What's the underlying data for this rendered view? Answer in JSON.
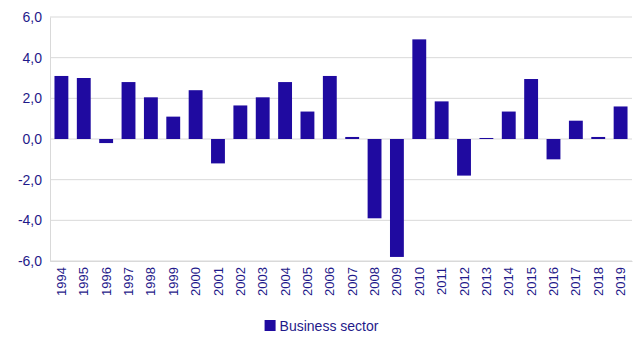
{
  "chart_data": {
    "type": "bar",
    "categories": [
      "1994",
      "1995",
      "1996",
      "1997",
      "1998",
      "1999",
      "2000",
      "2001",
      "2002",
      "2003",
      "2004",
      "2005",
      "2006",
      "2007",
      "2008",
      "2009",
      "2010",
      "2011",
      "2012",
      "2013",
      "2014",
      "2015",
      "2016",
      "2017",
      "2018",
      "2019"
    ],
    "series": [
      {
        "name": "Business sector",
        "color": "#1f0aa0",
        "values": [
          3.1,
          3.0,
          -0.2,
          2.8,
          2.05,
          1.1,
          2.4,
          -1.2,
          1.65,
          2.05,
          2.8,
          1.35,
          3.1,
          0.1,
          -3.9,
          -5.8,
          4.9,
          1.85,
          -1.8,
          0.05,
          1.35,
          2.95,
          -1.0,
          0.9,
          0.1,
          1.6
        ]
      }
    ],
    "ylim": [
      -6,
      6
    ],
    "yticks": [
      {
        "value": -6,
        "label": "-6,0"
      },
      {
        "value": -4,
        "label": "-4,0"
      },
      {
        "value": -2,
        "label": "-2,0"
      },
      {
        "value": 0,
        "label": "0,0"
      },
      {
        "value": 2,
        "label": "2,0"
      },
      {
        "value": 4,
        "label": "4,0"
      },
      {
        "value": 6,
        "label": "6,0"
      }
    ],
    "grid": true,
    "legend": "bottom"
  }
}
